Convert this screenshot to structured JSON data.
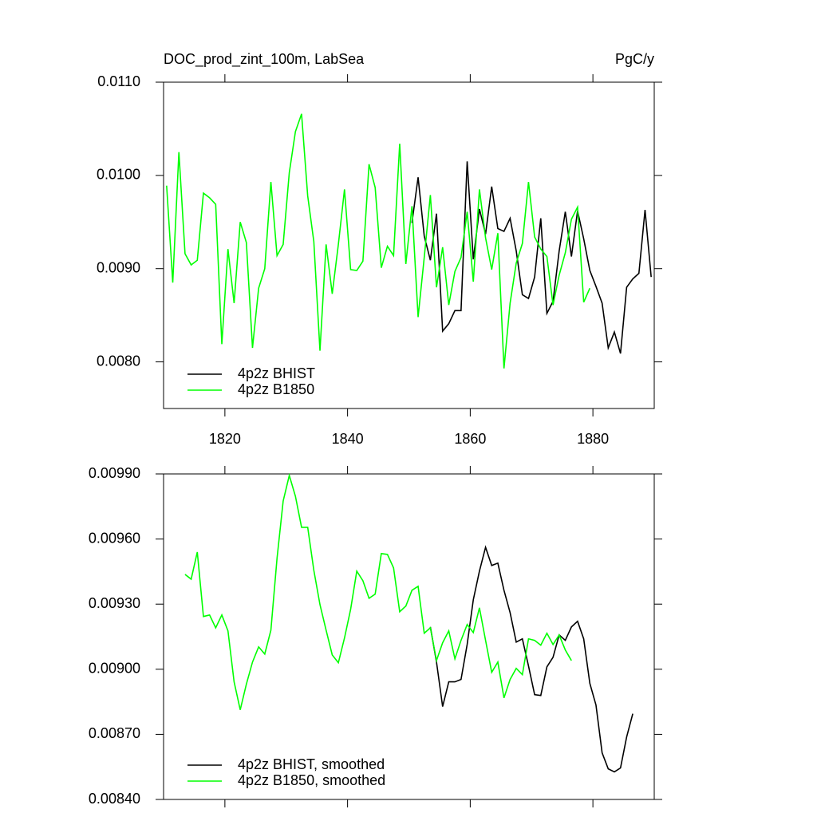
{
  "chart_data": [
    {
      "type": "line",
      "title": "DOC_prod_zint_100m, LabSea",
      "units": "PgC/y",
      "xlim": [
        1810,
        1890
      ],
      "xticks": [
        1820,
        1840,
        1860,
        1880
      ],
      "xtick_labels": true,
      "ylim": [
        0.0075,
        0.011
      ],
      "yticks": [
        {
          "value": 0.008,
          "label": "0.0080"
        },
        {
          "value": 0.009,
          "label": "0.0090"
        },
        {
          "value": 0.01,
          "label": "0.0100"
        },
        {
          "value": 0.011,
          "label": "0.0110"
        }
      ],
      "legend": "lower left",
      "series": [
        {
          "name": "4p2z BHIST",
          "color": "#000000",
          "x": [
            1850.5,
            1851.5,
            1852.5,
            1853.5,
            1854.5,
            1855.5,
            1856.5,
            1857.5,
            1858.5,
            1859.5,
            1860.5,
            1861.5,
            1862.5,
            1863.5,
            1864.5,
            1865.5,
            1866.5,
            1867.5,
            1868.5,
            1869.5,
            1870.5,
            1871.5,
            1872.5,
            1873.5,
            1874.5,
            1875.5,
            1876.5,
            1877.5,
            1878.5,
            1879.5,
            1880.5,
            1881.5,
            1882.5,
            1883.5,
            1884.5,
            1885.5,
            1886.5,
            1887.5,
            1888.5,
            1889.5
          ],
          "values": [
            0.00949,
            0.00998,
            0.00935,
            0.00909,
            0.00959,
            0.00833,
            0.00841,
            0.00855,
            0.00855,
            0.01015,
            0.0091,
            0.00964,
            0.00937,
            0.00988,
            0.00943,
            0.0094,
            0.00954,
            0.00919,
            0.00872,
            0.00868,
            0.00891,
            0.00954,
            0.00852,
            0.00865,
            0.00919,
            0.00961,
            0.00913,
            0.00962,
            0.00932,
            0.00898,
            0.00881,
            0.00863,
            0.00815,
            0.00832,
            0.00809,
            0.0088,
            0.00889,
            0.00895,
            0.00963,
            0.00891
          ]
        },
        {
          "name": "4p2z B1850",
          "color": "#00ff00",
          "x": [
            1810.5,
            1811.5,
            1812.5,
            1813.5,
            1814.5,
            1815.5,
            1816.5,
            1817.5,
            1818.5,
            1819.5,
            1820.5,
            1821.5,
            1822.5,
            1823.5,
            1824.5,
            1825.5,
            1826.5,
            1827.5,
            1828.5,
            1829.5,
            1830.5,
            1831.5,
            1832.5,
            1833.5,
            1834.5,
            1835.5,
            1836.5,
            1837.5,
            1838.5,
            1839.5,
            1840.5,
            1841.5,
            1842.5,
            1843.5,
            1844.5,
            1845.5,
            1846.5,
            1847.5,
            1848.5,
            1849.5,
            1850.5,
            1851.5,
            1852.5,
            1853.5,
            1854.5,
            1855.5,
            1856.5,
            1857.5,
            1858.5,
            1859.5,
            1860.5,
            1861.5,
            1862.5,
            1863.5,
            1864.5,
            1865.5,
            1866.5,
            1867.5,
            1868.5,
            1869.5,
            1870.5,
            1871.5,
            1872.5,
            1873.5,
            1874.5,
            1875.5,
            1876.5,
            1877.5,
            1878.5,
            1879.5
          ],
          "values": [
            0.00989,
            0.00885,
            0.01025,
            0.00916,
            0.00904,
            0.00909,
            0.00981,
            0.00976,
            0.00969,
            0.00819,
            0.00921,
            0.00863,
            0.0095,
            0.00928,
            0.00815,
            0.00879,
            0.009,
            0.00993,
            0.00914,
            0.00926,
            0.01003,
            0.01047,
            0.01066,
            0.00978,
            0.00929,
            0.00812,
            0.00926,
            0.00873,
            0.00926,
            0.00985,
            0.00899,
            0.00898,
            0.00908,
            0.01012,
            0.00987,
            0.00901,
            0.00924,
            0.00914,
            0.01034,
            0.00905,
            0.00967,
            0.00848,
            0.00912,
            0.00979,
            0.0088,
            0.00923,
            0.00861,
            0.00897,
            0.00912,
            0.00961,
            0.00886,
            0.00985,
            0.00933,
            0.00899,
            0.00938,
            0.00793,
            0.00863,
            0.00906,
            0.00927,
            0.00993,
            0.00934,
            0.00921,
            0.00913,
            0.00861,
            0.00893,
            0.00917,
            0.00953,
            0.00966,
            0.00864,
            0.00879
          ]
        }
      ]
    },
    {
      "type": "line",
      "xlim": [
        1810,
        1890
      ],
      "xticks": [
        1820,
        1840,
        1860,
        1880
      ],
      "xtick_labels": false,
      "ylim": [
        0.0084,
        0.0099
      ],
      "yticks": [
        {
          "value": 0.0084,
          "label": "0.00840"
        },
        {
          "value": 0.0087,
          "label": "0.00870"
        },
        {
          "value": 0.009,
          "label": "0.00900"
        },
        {
          "value": 0.0093,
          "label": "0.00930"
        },
        {
          "value": 0.0096,
          "label": "0.00960"
        },
        {
          "value": 0.0099,
          "label": "0.00990"
        }
      ],
      "legend": "lower left",
      "series": [
        {
          "name": "4p2z BHIST, smoothed",
          "color": "#000000",
          "x": [
            1853.5,
            1854.5,
            1855.5,
            1856.5,
            1857.5,
            1858.5,
            1859.5,
            1860.5,
            1861.5,
            1862.5,
            1863.5,
            1864.5,
            1865.5,
            1866.5,
            1867.5,
            1868.5,
            1869.5,
            1870.5,
            1871.5,
            1872.5,
            1873.5,
            1874.5,
            1875.5,
            1876.5,
            1877.5,
            1878.5,
            1879.5,
            1880.5,
            1881.5,
            1882.5,
            1883.5,
            1884.5,
            1885.5,
            1886.5
          ],
          "values": [
            0.009195,
            0.009033,
            0.008828,
            0.008942,
            0.008942,
            0.008953,
            0.009114,
            0.00932,
            0.009452,
            0.009562,
            0.009478,
            0.009489,
            0.009364,
            0.009261,
            0.009125,
            0.00914,
            0.009015,
            0.008883,
            0.008879,
            0.009011,
            0.009055,
            0.009158,
            0.009133,
            0.009195,
            0.009221,
            0.00914,
            0.008935,
            0.008835,
            0.008615,
            0.008541,
            0.008527,
            0.008545,
            0.008688,
            0.008795
          ]
        },
        {
          "name": "4p2z B1850, smoothed",
          "color": "#00ff00",
          "x": [
            1813.5,
            1814.5,
            1815.5,
            1816.5,
            1817.5,
            1818.5,
            1819.5,
            1820.5,
            1821.5,
            1822.5,
            1823.5,
            1824.5,
            1825.5,
            1826.5,
            1827.5,
            1828.5,
            1829.5,
            1830.5,
            1831.5,
            1832.5,
            1833.5,
            1834.5,
            1835.5,
            1836.5,
            1837.5,
            1838.5,
            1839.5,
            1840.5,
            1841.5,
            1842.5,
            1843.5,
            1844.5,
            1845.5,
            1846.5,
            1847.5,
            1848.5,
            1849.5,
            1850.5,
            1851.5,
            1852.5,
            1853.5,
            1854.5,
            1855.5,
            1856.5,
            1857.5,
            1858.5,
            1859.5,
            1860.5,
            1861.5,
            1862.5,
            1863.5,
            1864.5,
            1865.5,
            1866.5,
            1867.5,
            1868.5,
            1869.5,
            1870.5,
            1871.5,
            1872.5,
            1873.5,
            1874.5,
            1875.5,
            1876.5
          ],
          "values": [
            0.009437,
            0.009415,
            0.00954,
            0.009243,
            0.00925,
            0.009191,
            0.00925,
            0.009177,
            0.008942,
            0.008813,
            0.008931,
            0.009033,
            0.009103,
            0.00907,
            0.00918,
            0.009511,
            0.009775,
            0.009893,
            0.009797,
            0.009654,
            0.009654,
            0.009456,
            0.009298,
            0.00918,
            0.009066,
            0.00903,
            0.009144,
            0.009276,
            0.009452,
            0.009408,
            0.009327,
            0.009346,
            0.009533,
            0.009529,
            0.009467,
            0.009265,
            0.009291,
            0.009364,
            0.009382,
            0.009166,
            0.009191,
            0.00904,
            0.009122,
            0.009177,
            0.009048,
            0.009133,
            0.009206,
            0.009169,
            0.009283,
            0.009133,
            0.008986,
            0.009033,
            0.008868,
            0.008953,
            0.009004,
            0.008975,
            0.00914,
            0.009133,
            0.009111,
            0.009166,
            0.009114,
            0.009158,
            0.009089,
            0.00904
          ]
        }
      ]
    }
  ]
}
